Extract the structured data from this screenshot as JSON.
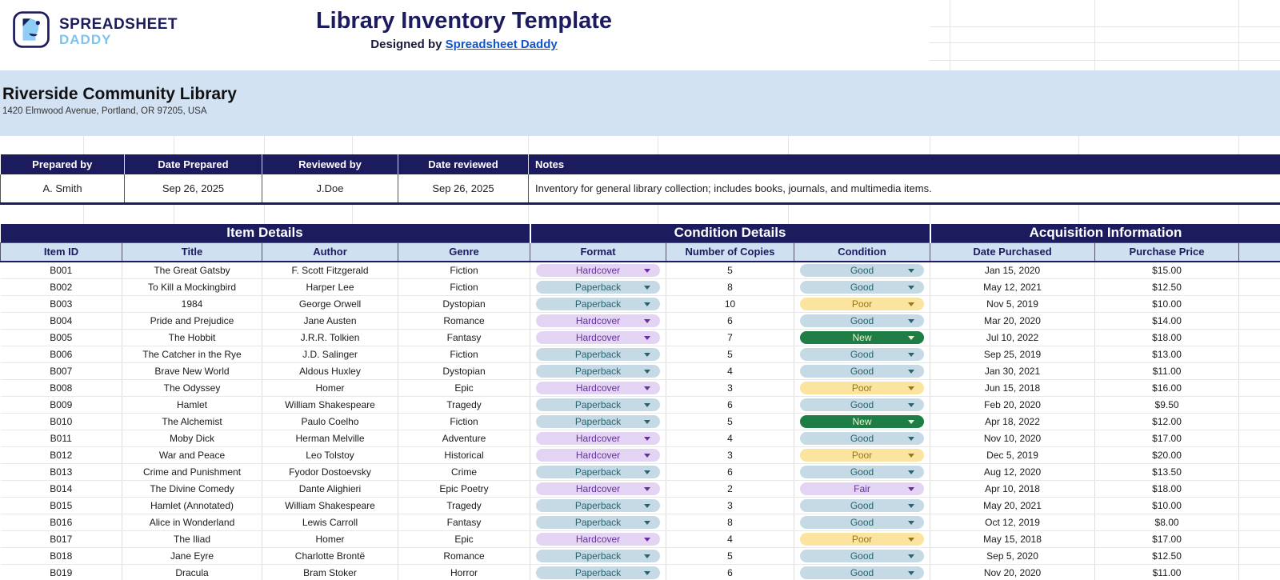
{
  "header": {
    "logo_line1": "SPREADSHEET",
    "logo_line2": "DADDY",
    "title": "Library Inventory Template",
    "designed_by_prefix": "Designed by ",
    "designed_by_link": "Spreadsheet Daddy"
  },
  "library": {
    "name": "Riverside Community Library",
    "address": "1420 Elmwood Avenue, Portland, OR 97205, USA"
  },
  "meta_table": {
    "headers": [
      "Prepared by",
      "Date Prepared",
      "Reviewed by",
      "Date reviewed",
      "Notes"
    ],
    "values": [
      "A. Smith",
      "Sep 26, 2025",
      "J.Doe",
      "Sep 26, 2025",
      "Inventory for general library collection; includes books, journals, and multimedia items."
    ]
  },
  "inventory": {
    "group_headers": [
      "Item Details",
      "Condition Details",
      "Acquisition Information"
    ],
    "columns": [
      "Item ID",
      "Title",
      "Author",
      "Genre",
      "Format",
      "Number of Copies",
      "Condition",
      "Date Purchased",
      "Purchase Price"
    ],
    "pill_styles": {
      "Hardcover": "purple",
      "Paperback": "teal",
      "Good": "teal",
      "Poor": "yellow",
      "New": "green",
      "Fair": "purple"
    },
    "rows": [
      {
        "id": "B001",
        "title": "The Great Gatsby",
        "author": "F. Scott Fitzgerald",
        "genre": "Fiction",
        "format": "Hardcover",
        "copies": "5",
        "condition": "Good",
        "date": "Jan 15, 2020",
        "price": "$15.00"
      },
      {
        "id": "B002",
        "title": "To Kill a Mockingbird",
        "author": "Harper Lee",
        "genre": "Fiction",
        "format": "Paperback",
        "copies": "8",
        "condition": "Good",
        "date": "May 12, 2021",
        "price": "$12.50"
      },
      {
        "id": "B003",
        "title": "1984",
        "author": "George Orwell",
        "genre": "Dystopian",
        "format": "Paperback",
        "copies": "10",
        "condition": "Poor",
        "date": "Nov 5, 2019",
        "price": "$10.00"
      },
      {
        "id": "B004",
        "title": "Pride and Prejudice",
        "author": "Jane Austen",
        "genre": "Romance",
        "format": "Hardcover",
        "copies": "6",
        "condition": "Good",
        "date": "Mar 20, 2020",
        "price": "$14.00"
      },
      {
        "id": "B005",
        "title": "The Hobbit",
        "author": "J.R.R. Tolkien",
        "genre": "Fantasy",
        "format": "Hardcover",
        "copies": "7",
        "condition": "New",
        "date": "Jul 10, 2022",
        "price": "$18.00"
      },
      {
        "id": "B006",
        "title": "The Catcher in the Rye",
        "author": "J.D. Salinger",
        "genre": "Fiction",
        "format": "Paperback",
        "copies": "5",
        "condition": "Good",
        "date": "Sep 25, 2019",
        "price": "$13.00"
      },
      {
        "id": "B007",
        "title": "Brave New World",
        "author": "Aldous Huxley",
        "genre": "Dystopian",
        "format": "Paperback",
        "copies": "4",
        "condition": "Good",
        "date": "Jan 30, 2021",
        "price": "$11.00"
      },
      {
        "id": "B008",
        "title": "The Odyssey",
        "author": "Homer",
        "genre": "Epic",
        "format": "Hardcover",
        "copies": "3",
        "condition": "Poor",
        "date": "Jun 15, 2018",
        "price": "$16.00"
      },
      {
        "id": "B009",
        "title": "Hamlet",
        "author": "William Shakespeare",
        "genre": "Tragedy",
        "format": "Paperback",
        "copies": "6",
        "condition": "Good",
        "date": "Feb 20, 2020",
        "price": "$9.50"
      },
      {
        "id": "B010",
        "title": "The Alchemist",
        "author": "Paulo Coelho",
        "genre": "Fiction",
        "format": "Paperback",
        "copies": "5",
        "condition": "New",
        "date": "Apr 18, 2022",
        "price": "$12.00"
      },
      {
        "id": "B011",
        "title": "Moby Dick",
        "author": "Herman Melville",
        "genre": "Adventure",
        "format": "Hardcover",
        "copies": "4",
        "condition": "Good",
        "date": "Nov 10, 2020",
        "price": "$17.00"
      },
      {
        "id": "B012",
        "title": "War and Peace",
        "author": "Leo Tolstoy",
        "genre": "Historical",
        "format": "Hardcover",
        "copies": "3",
        "condition": "Poor",
        "date": "Dec 5, 2019",
        "price": "$20.00"
      },
      {
        "id": "B013",
        "title": "Crime and Punishment",
        "author": "Fyodor Dostoevsky",
        "genre": "Crime",
        "format": "Paperback",
        "copies": "6",
        "condition": "Good",
        "date": "Aug 12, 2020",
        "price": "$13.50"
      },
      {
        "id": "B014",
        "title": "The Divine Comedy",
        "author": "Dante Alighieri",
        "genre": "Epic Poetry",
        "format": "Hardcover",
        "copies": "2",
        "condition": "Fair",
        "date": "Apr 10, 2018",
        "price": "$18.00"
      },
      {
        "id": "B015",
        "title": "Hamlet (Annotated)",
        "author": "William Shakespeare",
        "genre": "Tragedy",
        "format": "Paperback",
        "copies": "3",
        "condition": "Good",
        "date": "May 20, 2021",
        "price": "$10.00"
      },
      {
        "id": "B016",
        "title": "Alice in Wonderland",
        "author": "Lewis Carroll",
        "genre": "Fantasy",
        "format": "Paperback",
        "copies": "8",
        "condition": "Good",
        "date": "Oct 12, 2019",
        "price": "$8.00"
      },
      {
        "id": "B017",
        "title": "The Iliad",
        "author": "Homer",
        "genre": "Epic",
        "format": "Hardcover",
        "copies": "4",
        "condition": "Poor",
        "date": "May 15, 2018",
        "price": "$17.00"
      },
      {
        "id": "B018",
        "title": "Jane Eyre",
        "author": "Charlotte Brontë",
        "genre": "Romance",
        "format": "Paperback",
        "copies": "5",
        "condition": "Good",
        "date": "Sep 5, 2020",
        "price": "$12.50"
      },
      {
        "id": "B019",
        "title": "Dracula",
        "author": "Bram Stoker",
        "genre": "Horror",
        "format": "Paperback",
        "copies": "6",
        "condition": "Good",
        "date": "Nov 20, 2020",
        "price": "$11.00"
      }
    ],
    "partial_row": {
      "format_style": "teal",
      "condition_style": "teal"
    }
  },
  "colors": {
    "navy": "#1b1b5e",
    "banner_blue": "#d3e2f3",
    "header_blue": "#cfe0f0",
    "link_blue": "#1155cc",
    "pill_purple_bg": "#e4d4f4",
    "pill_purple_text": "#65309c",
    "pill_teal_bg": "#c5dae4",
    "pill_teal_text": "#2a6370",
    "pill_yellow_bg": "#fbe49f",
    "pill_yellow_text": "#96781a",
    "pill_green_bg": "#1e7d44",
    "pill_green_text": "#e9f5cb"
  }
}
